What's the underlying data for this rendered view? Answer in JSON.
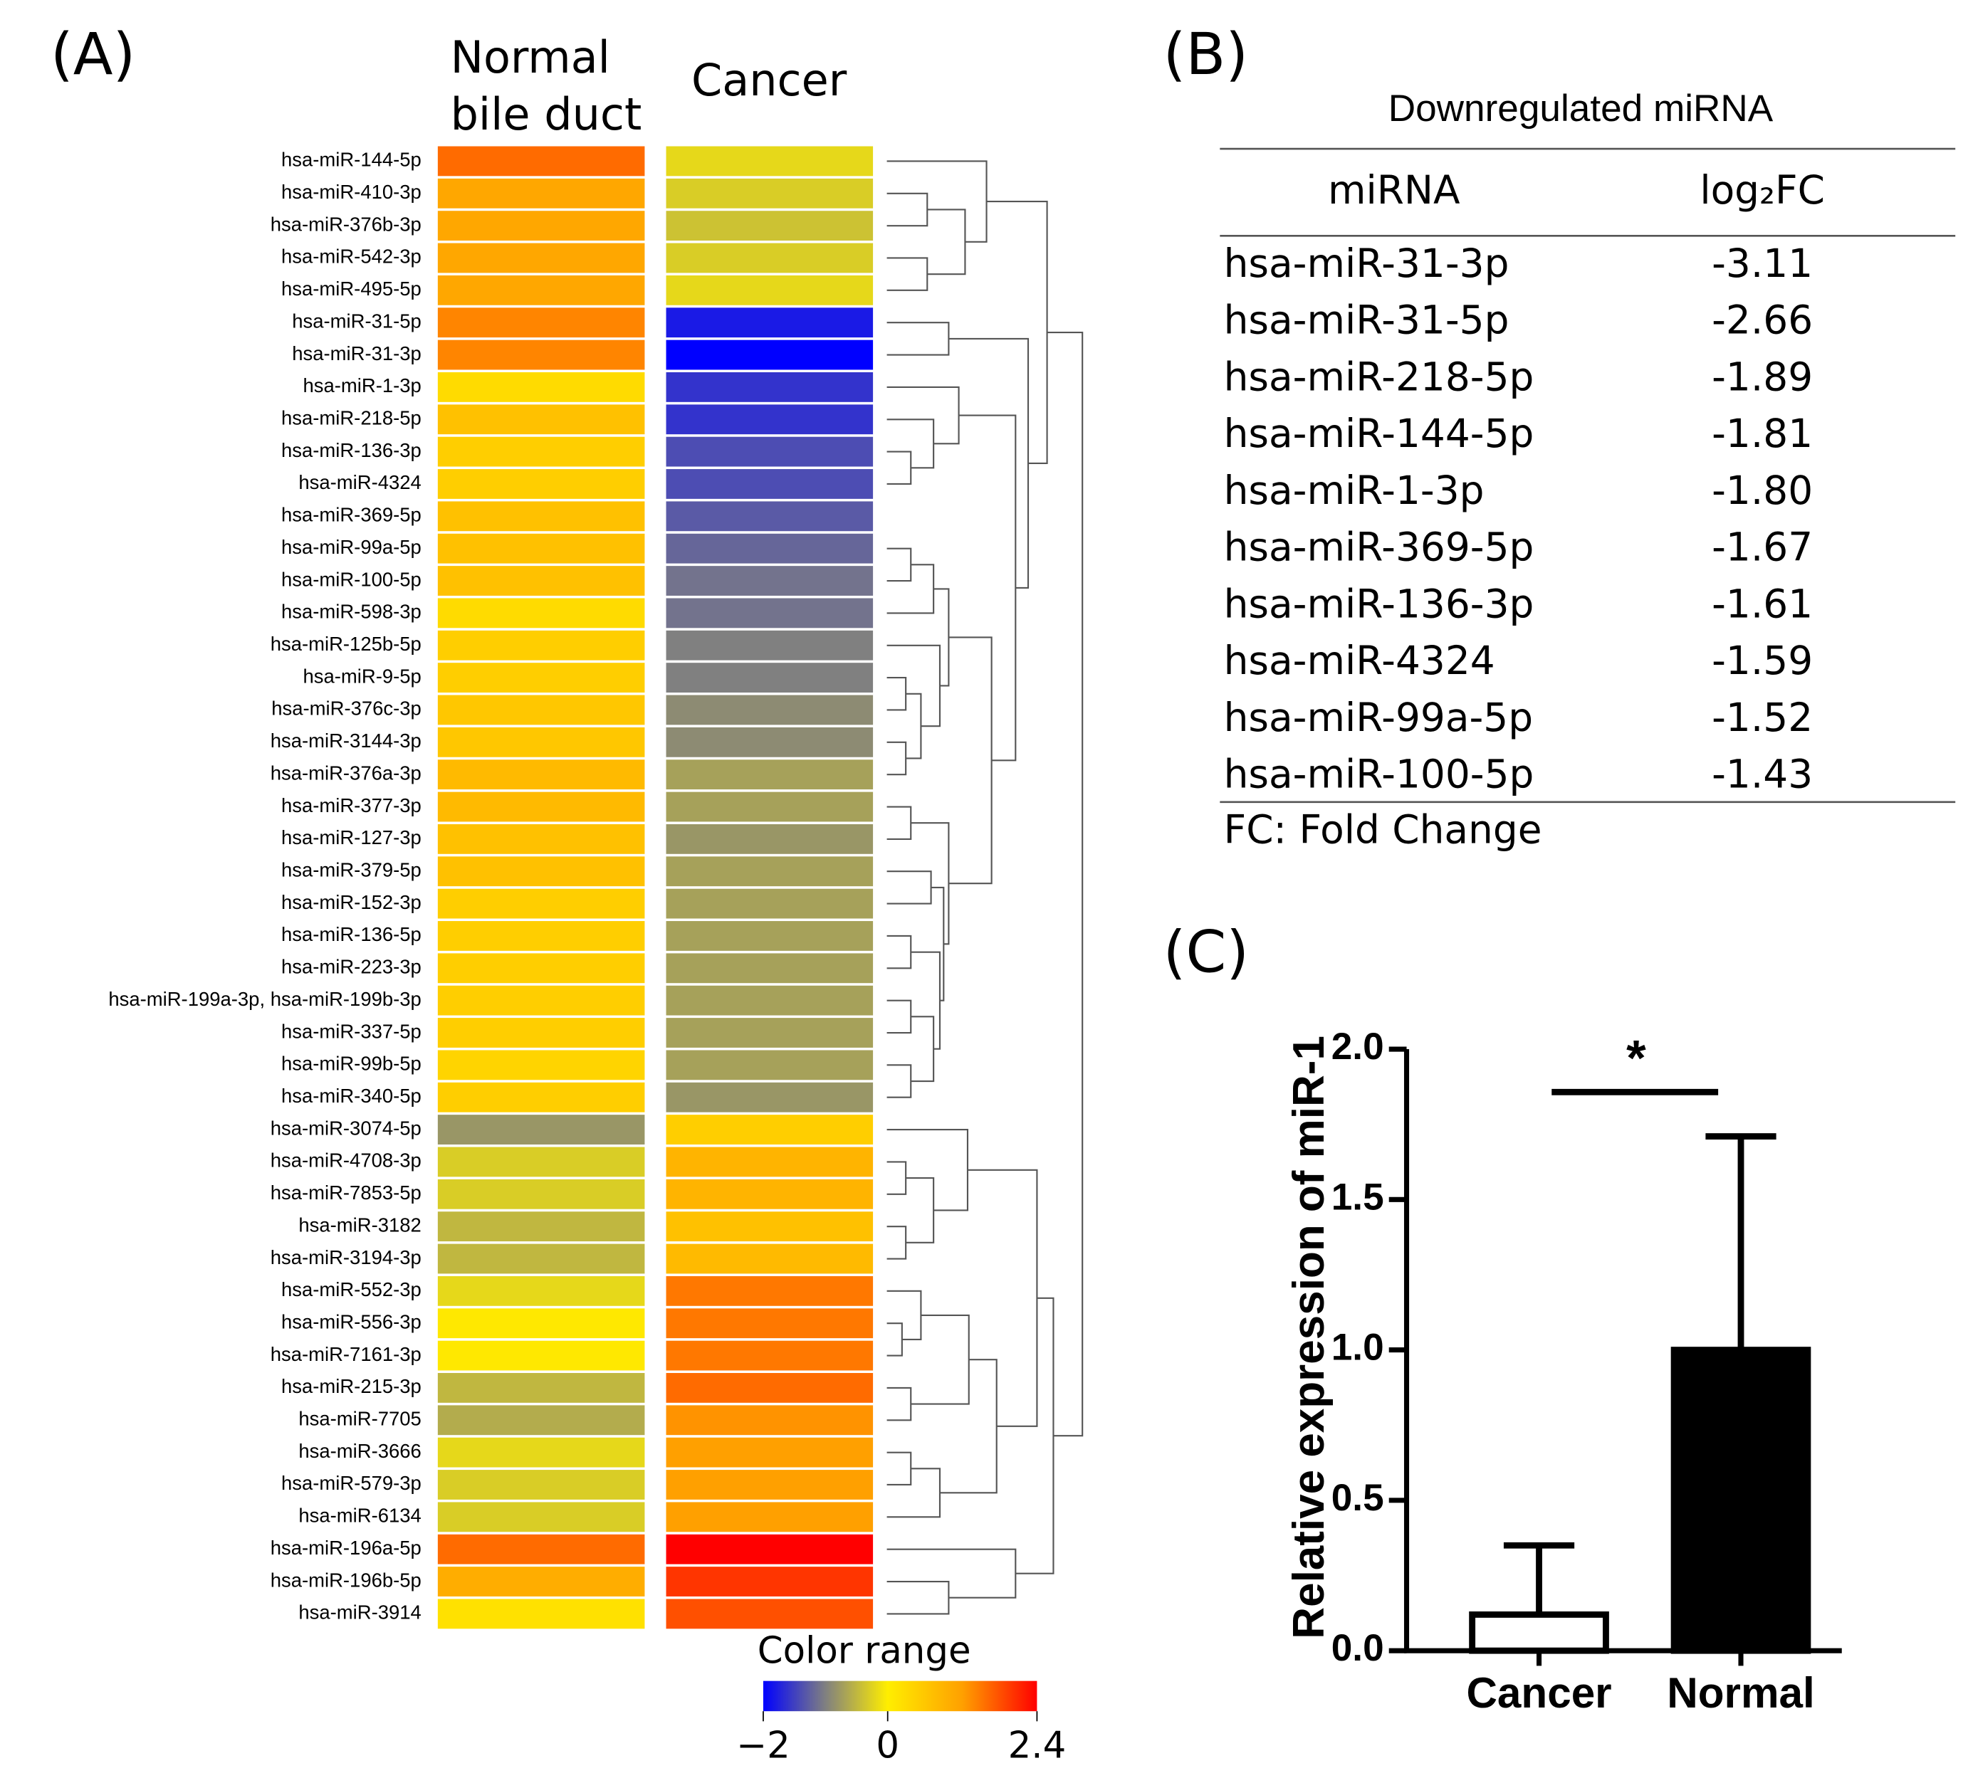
{
  "panel_labels": [
    "(A)",
    "(B)",
    "(C)"
  ],
  "chart_data": [
    {
      "type": "heatmap",
      "columns": [
        [
          "Normal",
          "bile duct"
        ],
        [
          "Cancer"
        ]
      ],
      "rows": [
        "hsa-miR-144-5p",
        "hsa-miR-410-3p",
        "hsa-miR-376b-3p",
        "hsa-miR-542-3p",
        "hsa-miR-495-5p",
        "hsa-miR-31-5p",
        "hsa-miR-31-3p",
        "hsa-miR-1-3p",
        "hsa-miR-218-5p",
        "hsa-miR-136-3p",
        "hsa-miR-4324",
        "hsa-miR-369-5p",
        "hsa-miR-99a-5p",
        "hsa-miR-100-5p",
        "hsa-miR-598-3p",
        "hsa-miR-125b-5p",
        "hsa-miR-9-5p",
        "hsa-miR-376c-3p",
        "hsa-miR-3144-3p",
        "hsa-miR-376a-3p",
        "hsa-miR-377-3p",
        "hsa-miR-127-3p",
        "hsa-miR-379-5p",
        "hsa-miR-152-3p",
        "hsa-miR-136-5p",
        "hsa-miR-223-3p",
        "hsa-miR-199a-3p, hsa-miR-199b-3p",
        "hsa-miR-337-5p",
        "hsa-miR-99b-5p",
        "hsa-miR-340-5p",
        "hsa-miR-3074-5p",
        "hsa-miR-4708-3p",
        "hsa-miR-7853-5p",
        "hsa-miR-3182",
        "hsa-miR-3194-3p",
        "hsa-miR-552-3p",
        "hsa-miR-556-3p",
        "hsa-miR-7161-3p",
        "hsa-miR-215-3p",
        "hsa-miR-7705",
        "hsa-miR-3666",
        "hsa-miR-579-3p",
        "hsa-miR-6134",
        "hsa-miR-196a-5p",
        "hsa-miR-196b-5p",
        "hsa-miR-3914"
      ],
      "values": [
        [
          1.6,
          -0.2
        ],
        [
          1.1,
          -0.3
        ],
        [
          1.1,
          -0.4
        ],
        [
          1.1,
          -0.3
        ],
        [
          1.1,
          -0.2
        ],
        [
          1.4,
          -1.8
        ],
        [
          1.4,
          -2.0
        ],
        [
          0.3,
          -1.6
        ],
        [
          0.7,
          -1.6
        ],
        [
          0.5,
          -1.4
        ],
        [
          0.5,
          -1.4
        ],
        [
          0.7,
          -1.3
        ],
        [
          0.7,
          -1.2
        ],
        [
          0.7,
          -1.1
        ],
        [
          0.3,
          -1.1
        ],
        [
          0.5,
          -1.0
        ],
        [
          0.5,
          -1.0
        ],
        [
          0.6,
          -0.9
        ],
        [
          0.6,
          -0.9
        ],
        [
          0.8,
          -0.7
        ],
        [
          0.8,
          -0.7
        ],
        [
          0.7,
          -0.8
        ],
        [
          0.7,
          -0.7
        ],
        [
          0.5,
          -0.7
        ],
        [
          0.5,
          -0.7
        ],
        [
          0.5,
          -0.7
        ],
        [
          0.5,
          -0.7
        ],
        [
          0.5,
          -0.7
        ],
        [
          0.4,
          -0.7
        ],
        [
          0.5,
          -0.8
        ],
        [
          -0.8,
          0.5
        ],
        [
          -0.3,
          0.9
        ],
        [
          -0.3,
          0.9
        ],
        [
          -0.5,
          0.7
        ],
        [
          -0.5,
          0.8
        ],
        [
          -0.2,
          1.5
        ],
        [
          0.1,
          1.5
        ],
        [
          0.1,
          1.5
        ],
        [
          -0.5,
          1.6
        ],
        [
          -0.6,
          1.3
        ],
        [
          -0.2,
          1.2
        ],
        [
          -0.3,
          1.2
        ],
        [
          -0.3,
          1.2
        ],
        [
          1.6,
          2.4
        ],
        [
          1.0,
          2.0
        ],
        [
          0.2,
          1.8
        ]
      ],
      "colorbar": {
        "title": "Color range",
        "lim": [
          -2,
          2.4
        ],
        "ticks": [
          {
            "value": -2,
            "label": "−2"
          },
          0,
          2.4
        ],
        "stops": [
          [
            -2,
            "#0000ff"
          ],
          [
            -1,
            "#808080"
          ],
          [
            0,
            "#ffee00"
          ],
          [
            1.2,
            "#ffa000"
          ],
          [
            2.4,
            "#ff0000"
          ]
        ]
      }
    },
    {
      "type": "bar",
      "categories": [
        "Cancer",
        "Normal"
      ],
      "values": [
        0.12,
        1.0
      ],
      "errors": [
        0.23,
        0.71
      ],
      "colors": [
        "#ffffff",
        "#000000"
      ],
      "ylabel": "Relative expression of miR-1",
      "ylim": [
        0,
        2
      ],
      "yticks": [
        {
          "value": 0,
          "label": "0.0"
        },
        {
          "value": 0.5,
          "label": "0.5"
        },
        {
          "value": 1,
          "label": "1.0"
        },
        {
          "value": 1.5,
          "label": "1.5"
        },
        {
          "value": 2,
          "label": "2.0"
        }
      ],
      "annotation": "*"
    }
  ],
  "table": {
    "title": "Downregulated miRNA",
    "header": [
      "miRNA",
      "log₂FC"
    ],
    "rows": [
      [
        "hsa-miR-31-3p",
        "-3.11"
      ],
      [
        "hsa-miR-31-5p",
        "-2.66"
      ],
      [
        "hsa-miR-218-5p",
        "-1.89"
      ],
      [
        "hsa-miR-144-5p",
        "-1.81"
      ],
      [
        "hsa-miR-1-3p",
        "-1.80"
      ],
      [
        "hsa-miR-369-5p",
        "-1.67"
      ],
      [
        "hsa-miR-136-3p",
        "-1.61"
      ],
      [
        "hsa-miR-4324",
        "-1.59"
      ],
      [
        "hsa-miR-99a-5p",
        "-1.52"
      ],
      [
        "hsa-miR-100-5p",
        "-1.43"
      ]
    ],
    "footnote": "FC: Fold Change"
  }
}
